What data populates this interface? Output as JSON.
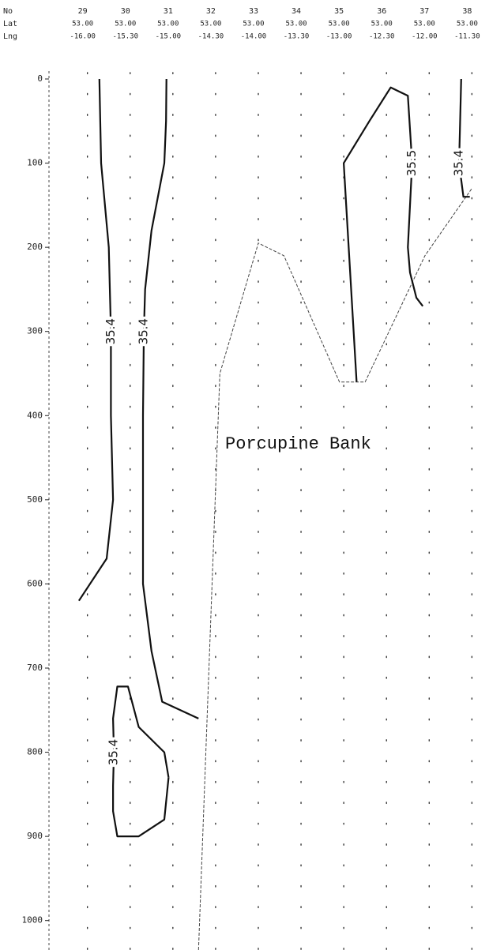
{
  "chart_data": {
    "type": "contour",
    "row_labels": [
      "No",
      "Lat",
      "Lng"
    ],
    "x": [
      29,
      30,
      31,
      32,
      33,
      34,
      35,
      36,
      37,
      38
    ],
    "lat": [
      "53.00",
      "53.00",
      "53.00",
      "53.00",
      "53.00",
      "53.00",
      "53.00",
      "53.00",
      "53.00",
      "53.00"
    ],
    "lng": [
      "-16.00",
      "-15.30",
      "-15.00",
      "-14.30",
      "-14.00",
      "-13.30",
      "-13.00",
      "-12.30",
      "-12.00",
      "-11.30"
    ],
    "xlim": [
      28.1,
      38.4
    ],
    "ylim": [
      0,
      1035
    ],
    "yticks": [
      0,
      100,
      200,
      300,
      400,
      500,
      600,
      700,
      800,
      900,
      1000
    ],
    "grid": true,
    "contours": [
      {
        "label": "35.4",
        "x": [
          29.28,
          29.3,
          29.32,
          29.5,
          29.55,
          29.55,
          29.6,
          29.45,
          28.8
        ],
        "y": [
          0,
          50,
          100,
          200,
          300,
          400,
          500,
          570,
          620
        ]
      },
      {
        "label": "35.4",
        "x": [
          30.85,
          30.84,
          30.8,
          30.5,
          30.35,
          30.32,
          30.3,
          30.3,
          30.5,
          30.75,
          31.6
        ],
        "y": [
          0,
          50,
          100,
          180,
          250,
          300,
          400,
          600,
          680,
          740,
          760
        ]
      },
      {
        "label": "35.4",
        "x": [
          30.9,
          30.8,
          30.2,
          29.7,
          29.6,
          29.6,
          29.62,
          29.6,
          29.7,
          29.95,
          30.2,
          30.8,
          30.9
        ],
        "y": [
          830,
          880,
          900,
          900,
          870,
          840,
          800,
          760,
          722,
          722,
          770,
          800,
          830
        ]
      },
      {
        "label": "35.5",
        "x": [
          36.85,
          36.7,
          36.55,
          36.5,
          36.55,
          36.6,
          36.5,
          36.1,
          35.6,
          35.0,
          35.3
        ],
        "y": [
          270,
          260,
          230,
          200,
          150,
          100,
          20,
          10,
          50,
          100,
          360
        ]
      },
      {
        "label": "35.4",
        "x": [
          37.75,
          37.72,
          37.7,
          37.8,
          37.95
        ],
        "y": [
          0,
          60,
          100,
          140,
          140
        ]
      }
    ],
    "bottom": {
      "x": [
        31.6,
        32.1,
        33.0,
        33.6,
        34.9,
        35.5,
        36.9,
        38.0
      ],
      "y": [
        1035,
        350,
        195,
        210,
        360,
        360,
        210,
        130
      ]
    },
    "annotation": "Porcupine Bank"
  }
}
